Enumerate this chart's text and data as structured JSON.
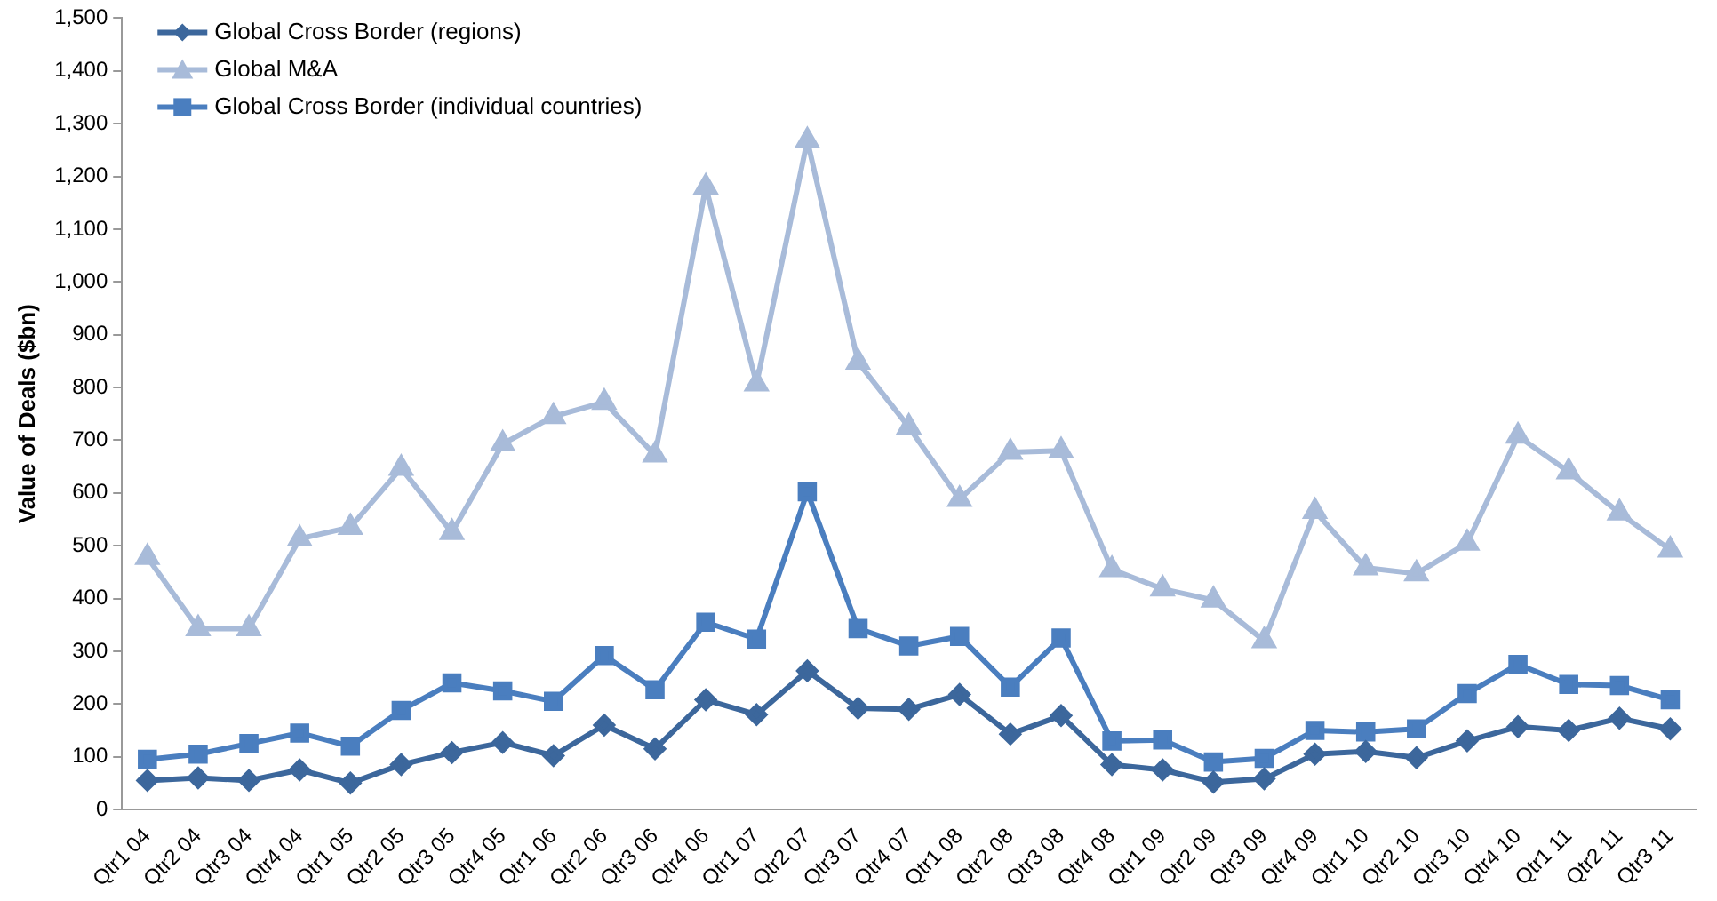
{
  "chart_data": {
    "type": "line",
    "ylabel": "Value of Deals ($bn)",
    "categories": [
      "Qtr1 04",
      "Qtr2 04",
      "Qtr3 04",
      "Qtr4 04",
      "Qtr1 05",
      "Qtr2 05",
      "Qtr3 05",
      "Qtr4 05",
      "Qtr1 06",
      "Qtr2 06",
      "Qtr3 06",
      "Qtr4 06",
      "Qtr1 07",
      "Qtr2 07",
      "Qtr3 07",
      "Qtr4 07",
      "Qtr1 08",
      "Qtr2 08",
      "Qtr3 08",
      "Qtr4 08",
      "Qtr1 09",
      "Qtr2 09",
      "Qtr3 09",
      "Qtr4 09",
      "Qtr1 10",
      "Qtr2 10",
      "Qtr3 10",
      "Qtr4 10",
      "Qtr1 11",
      "Qtr2 11",
      "Qtr3 11"
    ],
    "series": [
      {
        "name": "Global Cross Border (regions)",
        "color": "#3c679c",
        "marker": "diamond",
        "values": [
          55,
          60,
          55,
          75,
          50,
          85,
          108,
          127,
          102,
          160,
          115,
          208,
          180,
          263,
          192,
          190,
          218,
          143,
          178,
          85,
          75,
          52,
          58,
          105,
          110,
          98,
          130,
          157,
          150,
          173,
          153
        ]
      },
      {
        "name": "Global M&A",
        "color": "#a8bbd9",
        "marker": "triangle",
        "values": [
          478,
          343,
          343,
          513,
          535,
          647,
          525,
          693,
          745,
          772,
          672,
          1180,
          807,
          1268,
          848,
          725,
          588,
          677,
          680,
          455,
          418,
          397,
          320,
          565,
          458,
          447,
          505,
          708,
          640,
          562,
          492
        ]
      },
      {
        "name": "Global Cross Border (individual countries)",
        "color": "#4a7ebf",
        "marker": "square",
        "values": [
          95,
          105,
          125,
          145,
          120,
          188,
          240,
          225,
          205,
          292,
          227,
          355,
          323,
          602,
          343,
          310,
          328,
          232,
          325,
          130,
          132,
          90,
          97,
          150,
          147,
          153,
          220,
          275,
          237,
          235,
          208
        ]
      }
    ],
    "ylim": [
      0,
      1500
    ],
    "yticks": [
      0,
      100,
      200,
      300,
      400,
      500,
      600,
      700,
      800,
      900,
      {
        "value": 1000,
        "label": "1,000"
      },
      {
        "value": 1100,
        "label": "1,100"
      },
      {
        "value": 1200,
        "label": "1,200"
      },
      {
        "value": 1300,
        "label": "1,300"
      },
      {
        "value": 1400,
        "label": "1,400"
      },
      {
        "value": 1500,
        "label": "1,500"
      }
    ],
    "grid": false,
    "legend": "top left",
    "line_style": "solid"
  }
}
